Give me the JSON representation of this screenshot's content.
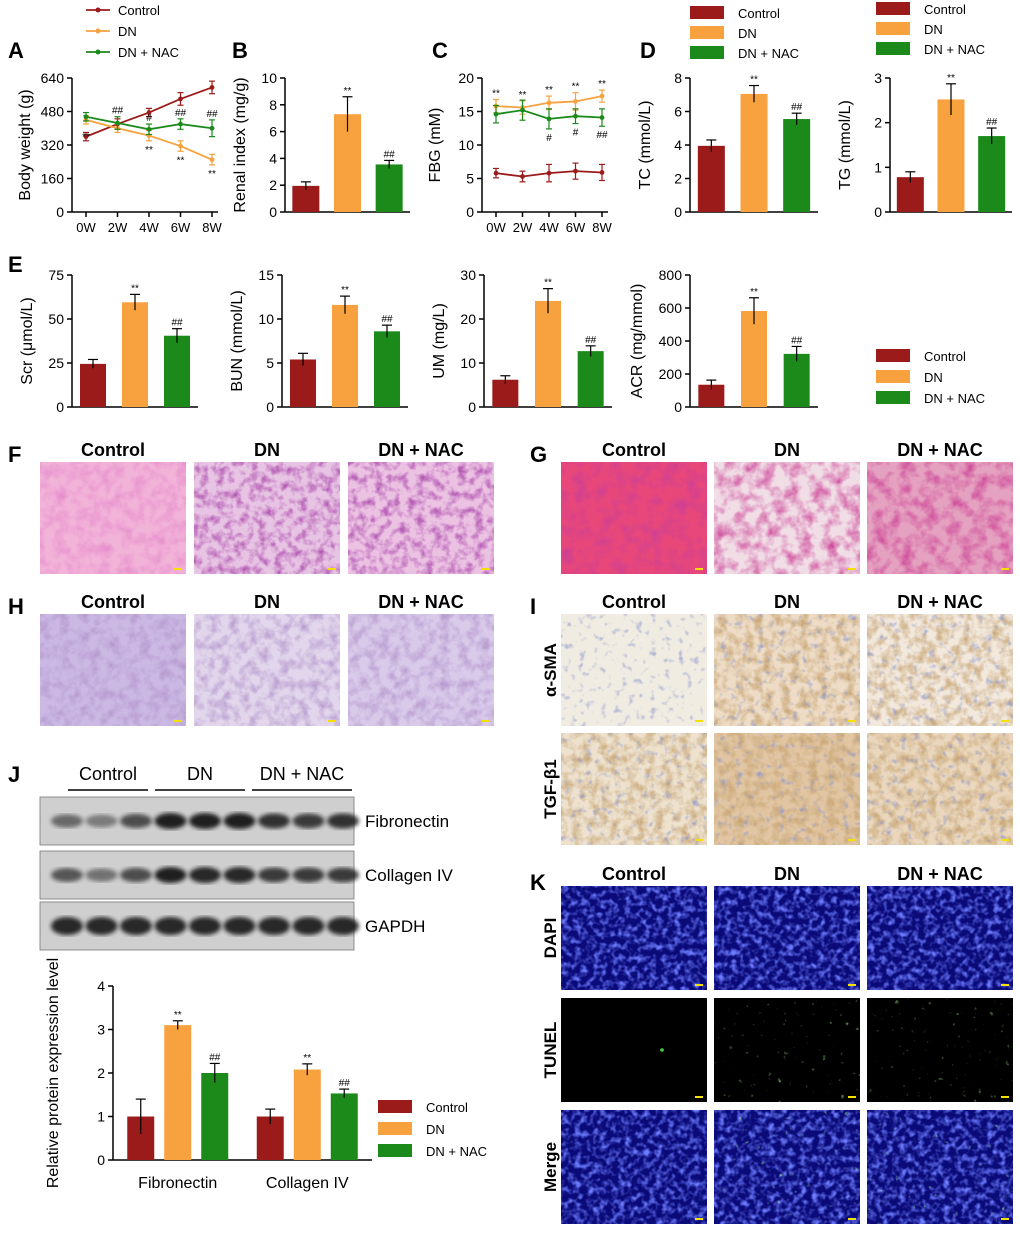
{
  "colors": {
    "control": "#9b1b1b",
    "dn": "#f7a13f",
    "nac": "#1b8a1b"
  },
  "legend": {
    "control": "Control",
    "dn": "DN",
    "nac": "DN + NAC"
  },
  "sig": {
    "dn": "**",
    "nac": "##",
    "nac_single": "#"
  },
  "panels": {
    "A": "A",
    "B": "B",
    "C": "C",
    "D": "D",
    "E": "E",
    "F": "F",
    "G": "G",
    "H": "H",
    "I": "I",
    "J": "J",
    "K": "K"
  },
  "histology": {
    "groups": [
      "Control",
      "DN",
      "DN + NAC"
    ],
    "I_rows": [
      "α-SMA",
      "TGF-β1"
    ],
    "K_rows": [
      "DAPI",
      "TUNEL",
      "Merge"
    ]
  },
  "western": {
    "groups": [
      "Control",
      "DN",
      "DN + NAC"
    ],
    "bands": [
      "Fibronectin",
      "Collagen IV",
      "GAPDH"
    ],
    "band_intensity": {
      "Fibronectin": [
        0.55,
        0.45,
        0.7,
        0.95,
        0.95,
        0.95,
        0.85,
        0.8,
        0.85
      ],
      "Collagen IV": [
        0.65,
        0.5,
        0.7,
        0.95,
        0.9,
        0.9,
        0.8,
        0.8,
        0.8
      ],
      "GAPDH": [
        0.9,
        0.9,
        0.9,
        0.9,
        0.9,
        0.9,
        0.9,
        0.9,
        0.9
      ]
    }
  },
  "chart_data": [
    {
      "id": "A",
      "type": "line",
      "ylabel": "Body weight (g)",
      "categories": [
        "0W",
        "2W",
        "4W",
        "6W",
        "8W"
      ],
      "ylim": [
        0,
        640
      ],
      "yticks": [
        0,
        160,
        320,
        480,
        640
      ],
      "series": [
        {
          "name": "Control",
          "values": [
            360,
            420,
            475,
            540,
            595
          ],
          "err": [
            20,
            25,
            20,
            30,
            30
          ]
        },
        {
          "name": "DN",
          "values": [
            440,
            400,
            365,
            315,
            250
          ],
          "err": [
            20,
            20,
            25,
            25,
            25
          ],
          "sig": [
            "**",
            "",
            "**",
            "**",
            "**"
          ]
        },
        {
          "name": "DN + NAC",
          "values": [
            455,
            425,
            395,
            420,
            400
          ],
          "err": [
            20,
            30,
            25,
            25,
            40
          ],
          "sig": [
            "",
            "##",
            "#",
            "##",
            "##"
          ]
        }
      ]
    },
    {
      "id": "B",
      "type": "bar",
      "ylabel": "Renal index (mg/g)",
      "ylim": [
        0,
        10
      ],
      "yticks": [
        0,
        2,
        4,
        6,
        8,
        10
      ],
      "categories": [
        "Control",
        "DN",
        "DN + NAC"
      ],
      "values": [
        1.95,
        7.3,
        3.55
      ],
      "err": [
        0.3,
        1.3,
        0.3
      ],
      "sig": [
        "",
        "**",
        "##"
      ]
    },
    {
      "id": "C",
      "type": "line",
      "ylabel": "FBG (mM)",
      "categories": [
        "0W",
        "2W",
        "4W",
        "6W",
        "8W"
      ],
      "ylim": [
        0,
        20
      ],
      "yticks": [
        0,
        5,
        10,
        15,
        20
      ],
      "series": [
        {
          "name": "Control",
          "values": [
            5.8,
            5.3,
            5.8,
            6.1,
            5.9
          ],
          "err": [
            0.7,
            0.8,
            1.3,
            1.2,
            1.2
          ]
        },
        {
          "name": "DN",
          "values": [
            15.8,
            15.6,
            16.3,
            16.5,
            17.3
          ],
          "err": [
            1.0,
            1.0,
            1.0,
            1.3,
            0.9
          ],
          "sig": [
            "**",
            "**",
            "**",
            "**",
            "**"
          ]
        },
        {
          "name": "DN + NAC",
          "values": [
            14.6,
            15.2,
            13.9,
            14.3,
            14.1
          ],
          "err": [
            1.3,
            1.5,
            1.5,
            1.1,
            1.3
          ],
          "sig": [
            "",
            "",
            "#",
            "#",
            "##"
          ]
        }
      ]
    },
    {
      "id": "D1",
      "type": "bar",
      "ylabel": "TC (mmol/L)",
      "ylim": [
        0,
        8
      ],
      "yticks": [
        0,
        2,
        4,
        6,
        8
      ],
      "categories": [
        "Control",
        "DN",
        "DN + NAC"
      ],
      "values": [
        3.95,
        7.05,
        5.55
      ],
      "err": [
        0.35,
        0.5,
        0.35
      ],
      "sig": [
        "",
        "**",
        "##"
      ]
    },
    {
      "id": "D2",
      "type": "bar",
      "ylabel": "TG (mmol/L)",
      "ylim": [
        0,
        3
      ],
      "yticks": [
        0,
        1,
        2,
        3
      ],
      "categories": [
        "Control",
        "DN",
        "DN + NAC"
      ],
      "values": [
        0.78,
        2.52,
        1.7
      ],
      "err": [
        0.12,
        0.35,
        0.18
      ],
      "sig": [
        "",
        "**",
        "##"
      ]
    },
    {
      "id": "E1",
      "type": "bar",
      "ylabel": "Scr (μmol/L)",
      "ylim": [
        0,
        75
      ],
      "yticks": [
        0,
        25,
        50,
        75
      ],
      "categories": [
        "Control",
        "DN",
        "DN + NAC"
      ],
      "values": [
        24.5,
        59.5,
        40.5
      ],
      "err": [
        2.5,
        4.5,
        4
      ],
      "sig": [
        "",
        "**",
        "##"
      ]
    },
    {
      "id": "E2",
      "type": "bar",
      "ylabel": "BUN (mmol/L)",
      "ylim": [
        0,
        15
      ],
      "yticks": [
        0,
        5,
        10,
        15
      ],
      "categories": [
        "Control",
        "DN",
        "DN + NAC"
      ],
      "values": [
        5.4,
        11.6,
        8.6
      ],
      "err": [
        0.7,
        1.0,
        0.7
      ],
      "sig": [
        "",
        "**",
        "##"
      ]
    },
    {
      "id": "E3",
      "type": "bar",
      "ylabel": "UM (mg/L)",
      "ylim": [
        0,
        30
      ],
      "yticks": [
        0,
        10,
        20,
        30
      ],
      "categories": [
        "Control",
        "DN",
        "DN + NAC"
      ],
      "values": [
        6.2,
        24.1,
        12.7
      ],
      "err": [
        0.9,
        2.8,
        1.2
      ],
      "sig": [
        "",
        "**",
        "##"
      ]
    },
    {
      "id": "E4",
      "type": "bar",
      "ylabel": "ACR (mg/mmol)",
      "ylim": [
        0,
        800
      ],
      "yticks": [
        0,
        200,
        400,
        600,
        800
      ],
      "categories": [
        "Control",
        "DN",
        "DN + NAC"
      ],
      "values": [
        135,
        582,
        322
      ],
      "err": [
        28,
        80,
        45
      ],
      "sig": [
        "",
        "**",
        "##"
      ]
    },
    {
      "id": "J",
      "type": "bar",
      "ylabel": "Relative protein expression level",
      "ylim": [
        0,
        4
      ],
      "yticks": [
        0,
        1,
        2,
        3,
        4
      ],
      "categories": [
        "Fibronectin",
        "Collagen IV"
      ],
      "series": [
        {
          "name": "Control",
          "values": [
            1.0,
            1.0
          ],
          "err": [
            0.4,
            0.17
          ]
        },
        {
          "name": "DN",
          "values": [
            3.1,
            2.08
          ],
          "err": [
            0.1,
            0.13
          ],
          "sig": [
            "**",
            "**"
          ]
        },
        {
          "name": "DN + NAC",
          "values": [
            2.0,
            1.53
          ],
          "err": [
            0.22,
            0.1
          ],
          "sig": [
            "##",
            "##"
          ]
        }
      ]
    }
  ]
}
